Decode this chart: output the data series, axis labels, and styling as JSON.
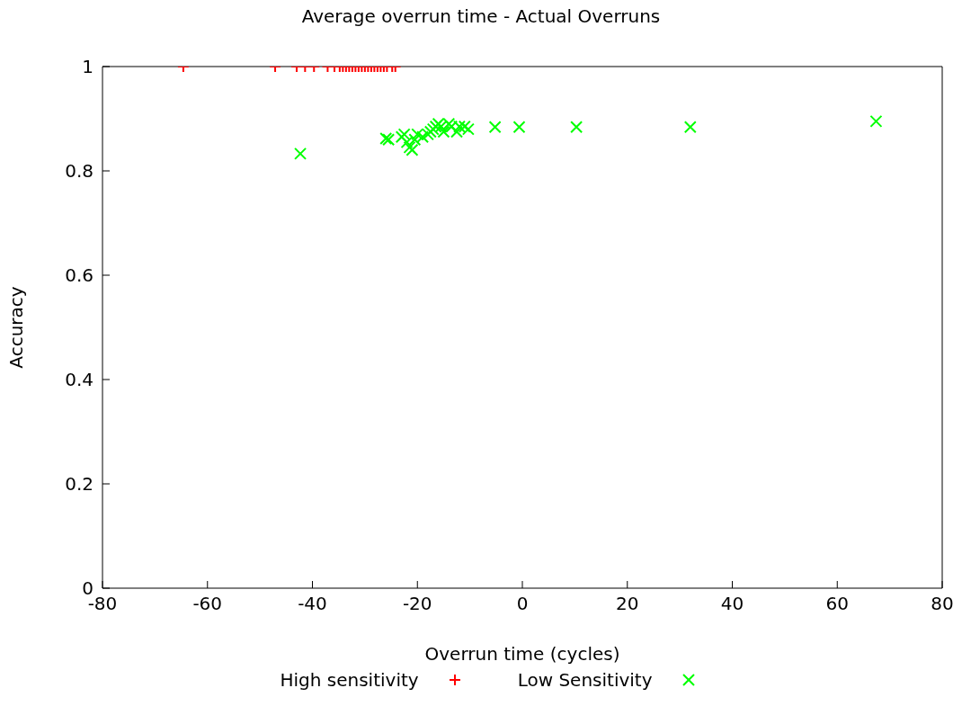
{
  "chart_data": {
    "type": "scatter",
    "title": "Average overrun time - Actual Overruns",
    "xlabel": "Overrun time (cycles)",
    "ylabel": "Accuracy",
    "xlim": [
      -80,
      80
    ],
    "xticks": [
      -80,
      -60,
      -40,
      -20,
      0,
      20,
      40,
      60,
      80
    ],
    "ylim": [
      0,
      1
    ],
    "yticks": [
      0,
      0.2,
      0.4,
      0.6,
      0.8,
      1
    ],
    "grid": false,
    "legend": "bottom",
    "series": [
      {
        "name": "High sensitivity",
        "color": "#ff0000",
        "marker": "plus",
        "x": [
          -64.6,
          -47.1,
          -43.0,
          -41.4,
          -39.7,
          -37.1,
          -35.8,
          -34.8,
          -34.2,
          -33.6,
          -33.0,
          -32.4,
          -31.8,
          -31.2,
          -30.6,
          -30.0,
          -29.4,
          -28.8,
          -28.2,
          -27.6,
          -27.0,
          -26.4,
          -25.8,
          -24.8,
          -24.2
        ],
        "values": [
          1,
          1,
          1,
          1,
          1,
          1,
          1,
          1,
          1,
          1,
          1,
          1,
          1,
          1,
          1,
          1,
          1,
          1,
          1,
          1,
          1,
          1,
          1,
          1,
          1
        ]
      },
      {
        "name": "Low Sensitivity",
        "color": "#00ff00",
        "marker": "cross",
        "x": [
          -42.3,
          -26.0,
          -25.5,
          -23.0,
          -22.5,
          -22.0,
          -21.5,
          -21.0,
          -20.5,
          -20.0,
          -19.0,
          -18.0,
          -17.5,
          -17.0,
          -16.5,
          -16.0,
          -15.5,
          -15.0,
          -14.0,
          -13.5,
          -12.5,
          -12.0,
          -11.0,
          -10.3,
          -5.2,
          -0.6,
          10.3,
          32.0,
          67.4
        ],
        "values": [
          0.833,
          0.862,
          0.86,
          0.865,
          0.87,
          0.855,
          0.845,
          0.84,
          0.86,
          0.87,
          0.865,
          0.87,
          0.875,
          0.88,
          0.885,
          0.89,
          0.885,
          0.875,
          0.89,
          0.885,
          0.875,
          0.885,
          0.885,
          0.88,
          0.884,
          0.884,
          0.884,
          0.884,
          0.895
        ]
      }
    ]
  }
}
